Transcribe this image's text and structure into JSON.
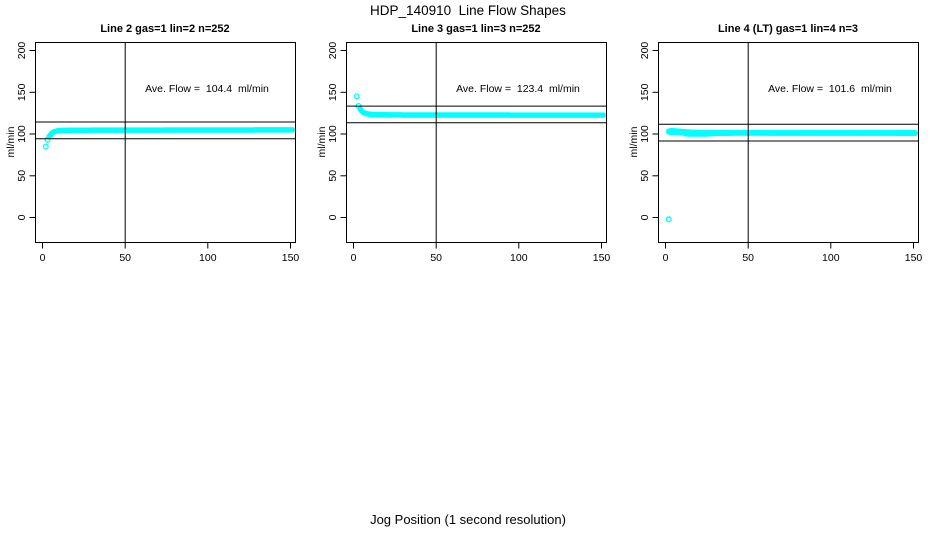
{
  "figure": {
    "title": "HDP_140910  Line Flow Shapes",
    "xlabel": "Jog Position (1 second resolution)",
    "accent_color": "#00FFFF",
    "line_color": "#000000",
    "background": "#FFFFFF"
  },
  "chart_data": [
    {
      "type": "scatter",
      "title": "Line 2 gas=1 lin=2 n=252",
      "gas": 1,
      "lin": 2,
      "n": 252,
      "annotation": "Ave. Flow =  104.4  ml/min",
      "ave_flow": 104.4,
      "ave_flow_units": "ml/min",
      "ylabel": "ml/min",
      "x_ticks": [
        0,
        50,
        100,
        150
      ],
      "y_ticks": [
        0,
        50,
        100,
        150,
        200
      ],
      "xlim": [
        -4,
        153
      ],
      "ylim": [
        -30,
        210
      ],
      "vline_x": 50,
      "hlines": [
        114.4,
        94.4
      ],
      "marker": "open-circle",
      "extra_points": [
        [
          2,
          85
        ],
        [
          3,
          93
        ]
      ],
      "series": [
        {
          "name": "flow-trace",
          "x_step": 0.7,
          "profile": [
            [
              4,
              97
            ],
            [
              5,
              99.5
            ],
            [
              6,
              101.5
            ],
            [
              7,
              102.8
            ],
            [
              9,
              103.8
            ],
            [
              12,
              104.3
            ],
            [
              25,
              104.6
            ],
            [
              60,
              104.7
            ],
            [
              151,
              104.9
            ]
          ]
        }
      ]
    },
    {
      "type": "scatter",
      "title": "Line 3 gas=1 lin=3 n=252",
      "gas": 1,
      "lin": 3,
      "n": 252,
      "annotation": "Ave. Flow =  123.4  ml/min",
      "ave_flow": 123.4,
      "ave_flow_units": "ml/min",
      "ylabel": "ml/min",
      "x_ticks": [
        0,
        50,
        100,
        150
      ],
      "y_ticks": [
        0,
        50,
        100,
        150,
        200
      ],
      "xlim": [
        -4,
        153
      ],
      "ylim": [
        -30,
        210
      ],
      "vline_x": 50,
      "hlines": [
        133.4,
        113.4
      ],
      "marker": "open-circle",
      "extra_points": [
        [
          2,
          145
        ],
        [
          3,
          133.5
        ]
      ],
      "series": [
        {
          "name": "flow-trace",
          "x_step": 0.7,
          "profile": [
            [
              4,
              130
            ],
            [
              5,
              127.5
            ],
            [
              6,
              125.8
            ],
            [
              8,
              124.3
            ],
            [
              11,
              123.4
            ],
            [
              16,
              123
            ],
            [
              30,
              122.8
            ],
            [
              151,
              122.6
            ]
          ]
        }
      ]
    },
    {
      "type": "scatter",
      "title": "Line 4 (LT) gas=1 lin=4 n=3",
      "gas": 1,
      "lin": 4,
      "n": 3,
      "annotation": "Ave. Flow =  101.6  ml/min",
      "ave_flow": 101.6,
      "ave_flow_units": "ml/min",
      "ylabel": "ml/min",
      "x_ticks": [
        0,
        50,
        100,
        150
      ],
      "y_ticks": [
        0,
        50,
        100,
        150,
        200
      ],
      "xlim": [
        -4,
        153
      ],
      "ylim": [
        -30,
        210
      ],
      "vline_x": 50,
      "hlines": [
        111.6,
        91.6
      ],
      "marker": "open-circle",
      "extra_points": [
        [
          2,
          -2
        ]
      ],
      "series": [
        {
          "name": "flow-trace-1",
          "x_step": 0.7,
          "profile": [
            [
              2,
              103.5
            ],
            [
              4,
              104
            ],
            [
              7,
              103.5
            ],
            [
              12,
              102.6
            ],
            [
              18,
              101.9
            ],
            [
              30,
              101.5
            ],
            [
              151,
              101.4
            ]
          ]
        },
        {
          "name": "flow-trace-2",
          "x_step": 0.7,
          "profile": [
            [
              2,
              102.3
            ],
            [
              10,
              101.8
            ],
            [
              20,
              101.2
            ],
            [
              151,
              101.0
            ]
          ]
        },
        {
          "name": "flow-trace-3",
          "x_step": 1,
          "profile": [
            [
              12,
              100.3
            ],
            [
              15,
              99.9
            ],
            [
              19,
              100.1
            ],
            [
              23,
              99.9
            ],
            [
              27,
              100.4
            ],
            [
              33,
              100.9
            ],
            [
              40,
              101.1
            ]
          ]
        }
      ]
    }
  ]
}
